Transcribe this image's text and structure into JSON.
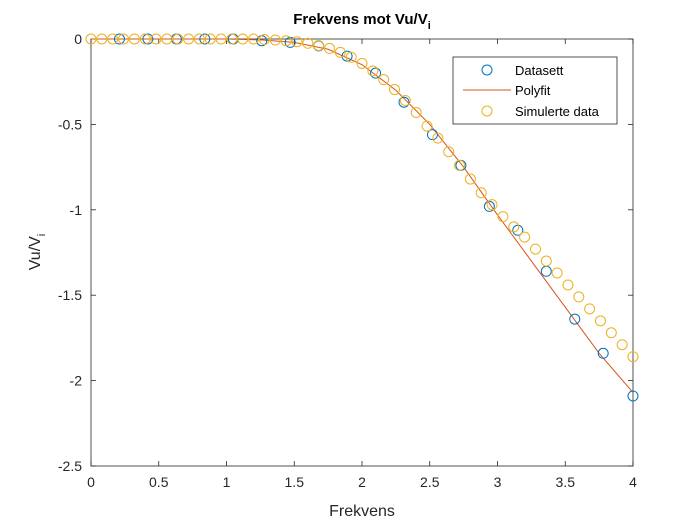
{
  "chart_data": {
    "type": "scatter",
    "title_main": "Frekvens mot Vu/V",
    "title_sub": "i",
    "xlabel": "Frekvens",
    "ylabel_main": "Vu/V",
    "ylabel_sub": "i",
    "xlim": [
      0,
      4
    ],
    "ylim": [
      -2.5,
      0
    ],
    "xticks": [
      0,
      0.5,
      1,
      1.5,
      2,
      2.5,
      3,
      3.5,
      4
    ],
    "xtick_labels": [
      "0",
      "0.5",
      "1",
      "1.5",
      "2",
      "2.5",
      "3",
      "3.5",
      "4"
    ],
    "yticks": [
      0,
      -0.5,
      -1,
      -1.5,
      -2,
      -2.5
    ],
    "ytick_labels": [
      "0",
      "-0.5",
      "-1",
      "-1.5",
      "-2",
      "-2.5"
    ],
    "legend_position": "top-right",
    "colors": {
      "datasett": "#0072BD",
      "polyfit": "#D95319",
      "simulerte": "#EDB120",
      "axes": "#262626"
    },
    "series": [
      {
        "name": "Datasett",
        "style": "circle",
        "x": [
          0.21,
          0.42,
          0.63,
          0.84,
          1.05,
          1.26,
          1.47,
          1.68,
          1.89,
          2.1,
          2.31,
          2.52,
          2.73,
          2.94,
          3.15,
          3.36,
          3.57,
          3.78,
          4.0
        ],
        "y": [
          0,
          0,
          0,
          0,
          0,
          -0.01,
          -0.02,
          -0.04,
          -0.1,
          -0.2,
          -0.37,
          -0.56,
          -0.74,
          -0.98,
          -1.12,
          -1.36,
          -1.64,
          -1.84,
          -2.09
        ]
      },
      {
        "name": "Polyfit",
        "style": "line",
        "x": [
          0,
          0.5,
          1,
          1.25,
          1.5,
          1.75,
          2,
          2.25,
          2.5,
          2.75,
          3,
          3.25,
          3.5,
          3.75,
          4
        ],
        "y": [
          0,
          0,
          0,
          -0.005,
          -0.02,
          -0.06,
          -0.15,
          -0.3,
          -0.5,
          -0.75,
          -1.03,
          -1.3,
          -1.57,
          -1.84,
          -2.07
        ]
      },
      {
        "name": "Simulerte data",
        "style": "circle",
        "x": [
          0,
          0.08,
          0.16,
          0.24,
          0.32,
          0.4,
          0.48,
          0.56,
          0.64,
          0.72,
          0.8,
          0.88,
          0.96,
          1.04,
          1.12,
          1.2,
          1.28,
          1.36,
          1.44,
          1.52,
          1.6,
          1.68,
          1.76,
          1.84,
          1.92,
          2.0,
          2.08,
          2.16,
          2.24,
          2.32,
          2.4,
          2.48,
          2.56,
          2.64,
          2.72,
          2.8,
          2.88,
          2.96,
          3.04,
          3.12,
          3.2,
          3.28,
          3.36,
          3.44,
          3.52,
          3.6,
          3.68,
          3.76,
          3.84,
          3.92,
          4.0
        ],
        "y": [
          0,
          0,
          0,
          0,
          0,
          0,
          0,
          0,
          0,
          0,
          0,
          0,
          0,
          0,
          0,
          0,
          -0.003,
          -0.006,
          -0.01,
          -0.016,
          -0.025,
          -0.038,
          -0.055,
          -0.078,
          -0.107,
          -0.143,
          -0.187,
          -0.238,
          -0.296,
          -0.36,
          -0.43,
          -0.51,
          -0.58,
          -0.66,
          -0.74,
          -0.82,
          -0.9,
          -0.97,
          -1.04,
          -1.1,
          -1.16,
          -1.23,
          -1.3,
          -1.37,
          -1.44,
          -1.51,
          -1.58,
          -1.65,
          -1.72,
          -1.79,
          -1.86
        ]
      }
    ]
  }
}
